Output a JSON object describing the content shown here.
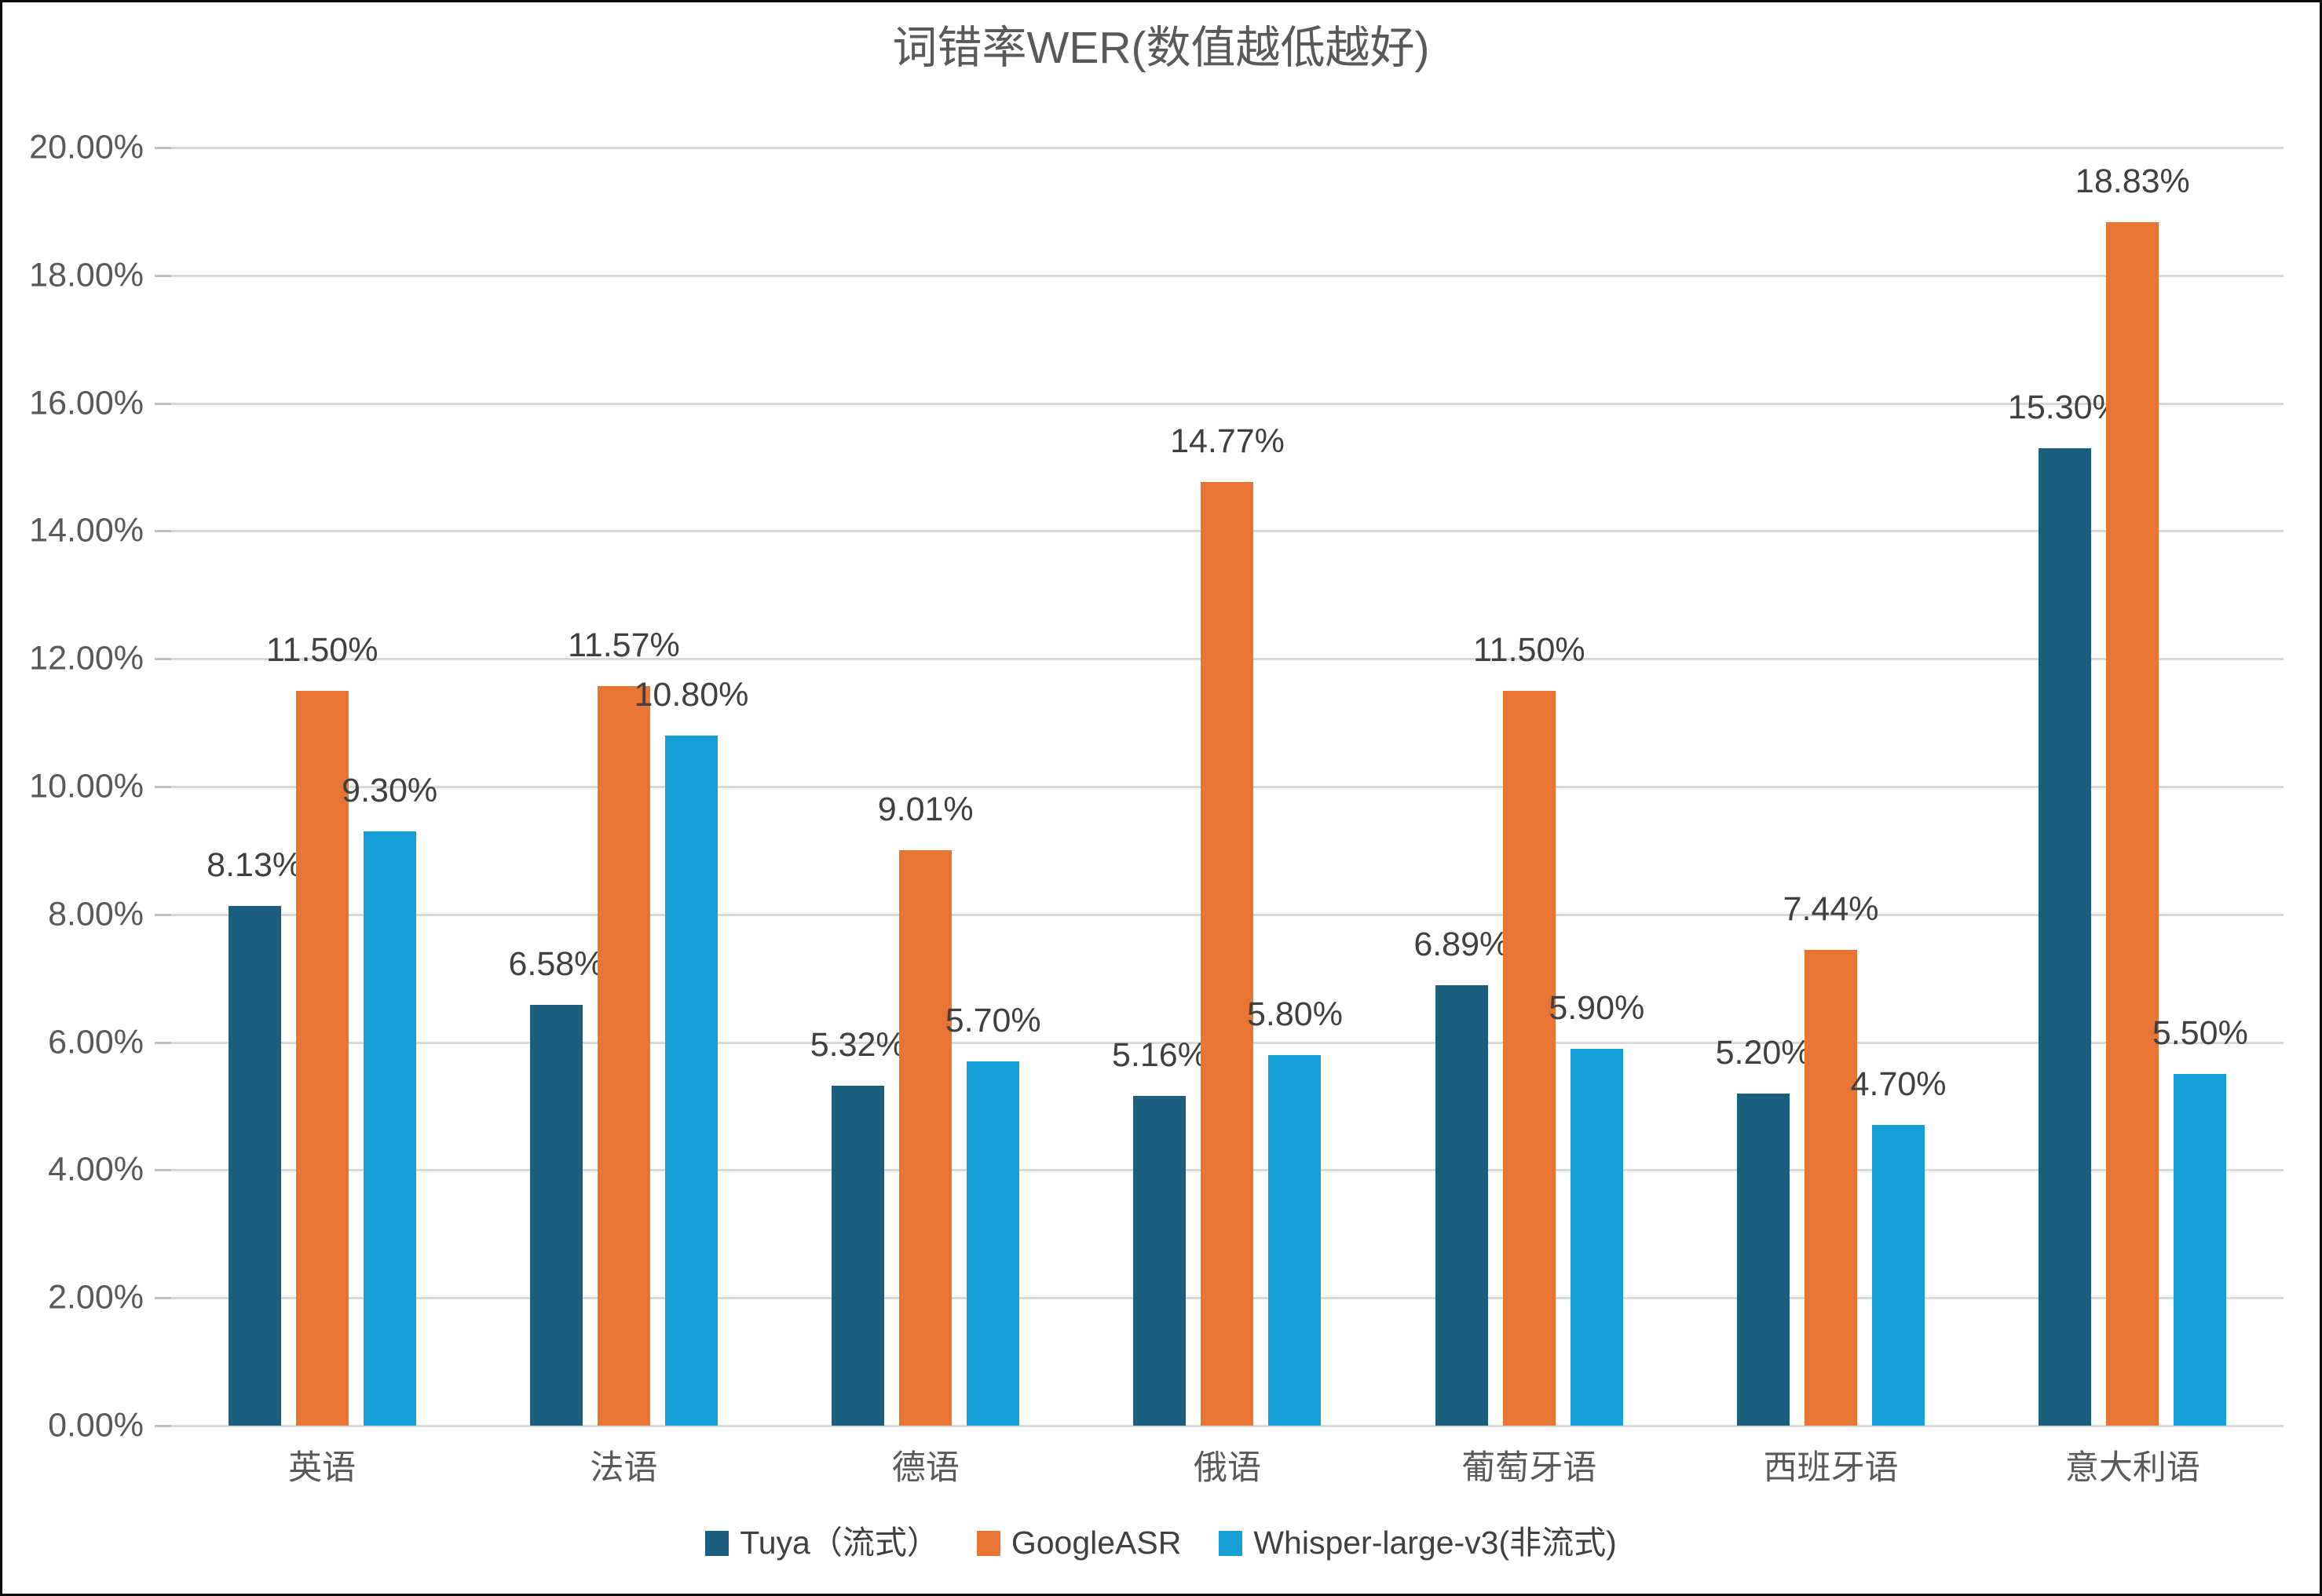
{
  "title": "词错率WER(数值越低越好)",
  "chart_data": {
    "type": "bar",
    "title": "词错率WER(数值越低越好)",
    "categories": [
      "英语",
      "法语",
      "德语",
      "俄语",
      "葡萄牙语",
      "西班牙语",
      "意大利语"
    ],
    "series": [
      {
        "name": "Tuya（流式）",
        "color": "#1B5E7E",
        "values": [
          8.13,
          6.58,
          5.32,
          5.16,
          6.89,
          5.2,
          15.3
        ],
        "labels": [
          "8.13%",
          "6.58%",
          "5.32%",
          "5.16%",
          "6.89%",
          "5.20%",
          "15.30%"
        ]
      },
      {
        "name": "GoogleASR",
        "color": "#E87533",
        "values": [
          11.5,
          11.57,
          9.01,
          14.77,
          11.5,
          7.44,
          18.83
        ],
        "labels": [
          "11.50%",
          "11.57%",
          "9.01%",
          "14.77%",
          "11.50%",
          "7.44%",
          "18.83%"
        ]
      },
      {
        "name": "Whisper-large-v3(非流式)",
        "color": "#149FD6",
        "values": [
          9.3,
          10.8,
          5.7,
          5.8,
          5.9,
          4.7,
          5.5
        ],
        "labels": [
          "9.30%",
          "10.80%",
          "5.70%",
          "5.80%",
          "5.90%",
          "4.70%",
          "5.50%"
        ]
      }
    ],
    "ylim": [
      0,
      20
    ],
    "y_ticks": [
      "20.00%",
      "18.00%",
      "16.00%",
      "14.00%",
      "12.00%",
      "10.00%",
      "8.00%",
      "6.00%",
      "4.00%",
      "2.00%",
      "0.00%"
    ],
    "grid": true,
    "legend_position": "bottom"
  },
  "colors": {
    "grid": "#d9d9d9",
    "tick": "#bfbfbf",
    "axis_text": "#595959",
    "label_text": "#404040"
  }
}
